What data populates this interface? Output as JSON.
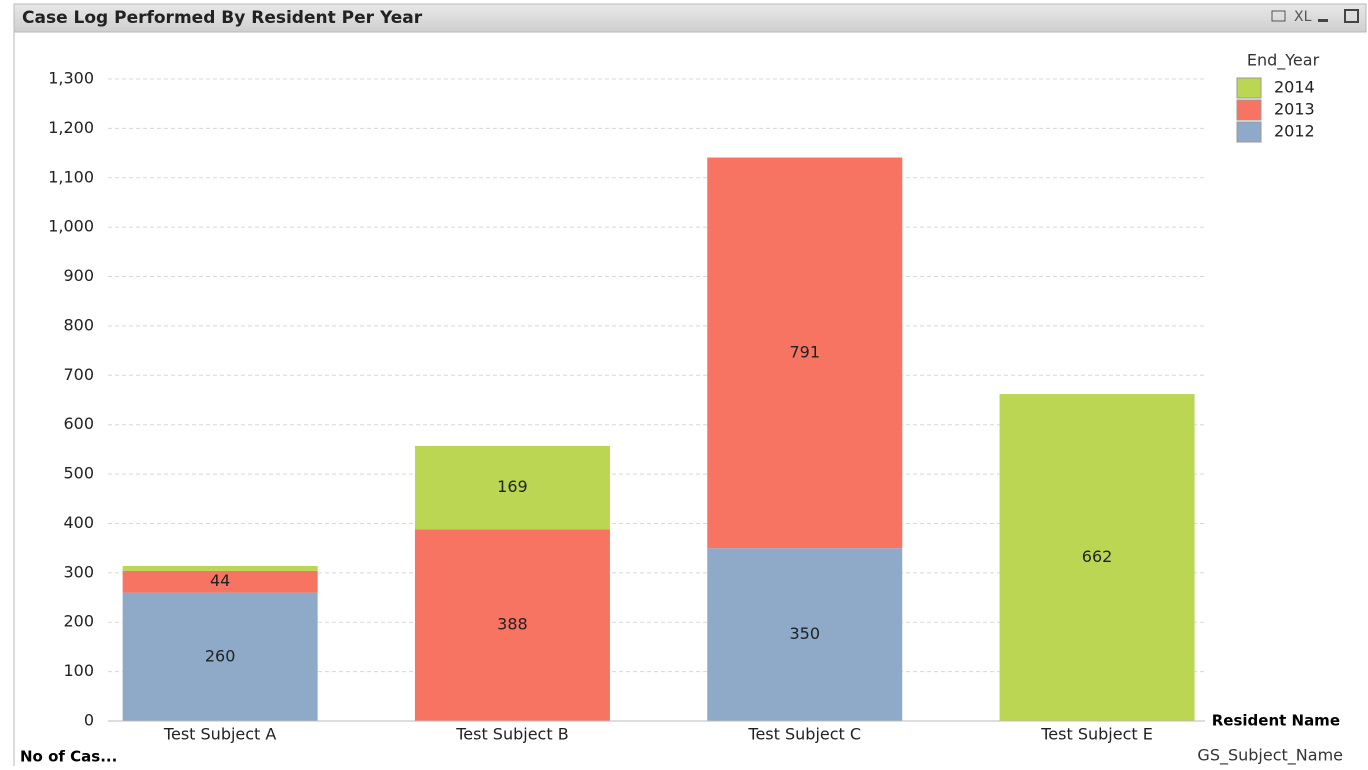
{
  "toolbar": {
    "xl": "XL"
  },
  "chart_data": {
    "type": "stacked_bar",
    "title": "Case Log Performed By Resident Per Year",
    "y_label": "No of Cas...",
    "x_label": "Resident Name",
    "x_field": "GS_Subject_Name",
    "legend_title": "End_Year",
    "legend": "top-right",
    "grid": true,
    "categories": [
      "Test Subject A",
      "Test Subject B",
      "Test Subject C",
      "Test  Subject E"
    ],
    "series": [
      {
        "name": "2012",
        "color": "#8fa9c9",
        "values": [
          260,
          null,
          350,
          null
        ],
        "value_labels": [
          "260",
          null,
          "350",
          null
        ]
      },
      {
        "name": "2013",
        "color": "#f87462",
        "values": [
          44,
          388,
          791,
          null
        ],
        "value_labels": [
          "44",
          "388",
          "791",
          null
        ]
      },
      {
        "name": "2014",
        "color": "#bad653",
        "values": [
          10,
          169,
          null,
          662
        ],
        "value_labels": [
          null,
          "169",
          null,
          "662"
        ]
      }
    ],
    "ylim": [
      0,
      1300
    ],
    "yticks": [
      0,
      100,
      200,
      300,
      400,
      500,
      600,
      700,
      800,
      900,
      {
        "value": 1000,
        "label": "1,000"
      },
      {
        "value": 1100,
        "label": "1,100"
      },
      {
        "value": 1200,
        "label": "1,200"
      },
      {
        "value": 1300,
        "label": "1,300"
      }
    ]
  }
}
